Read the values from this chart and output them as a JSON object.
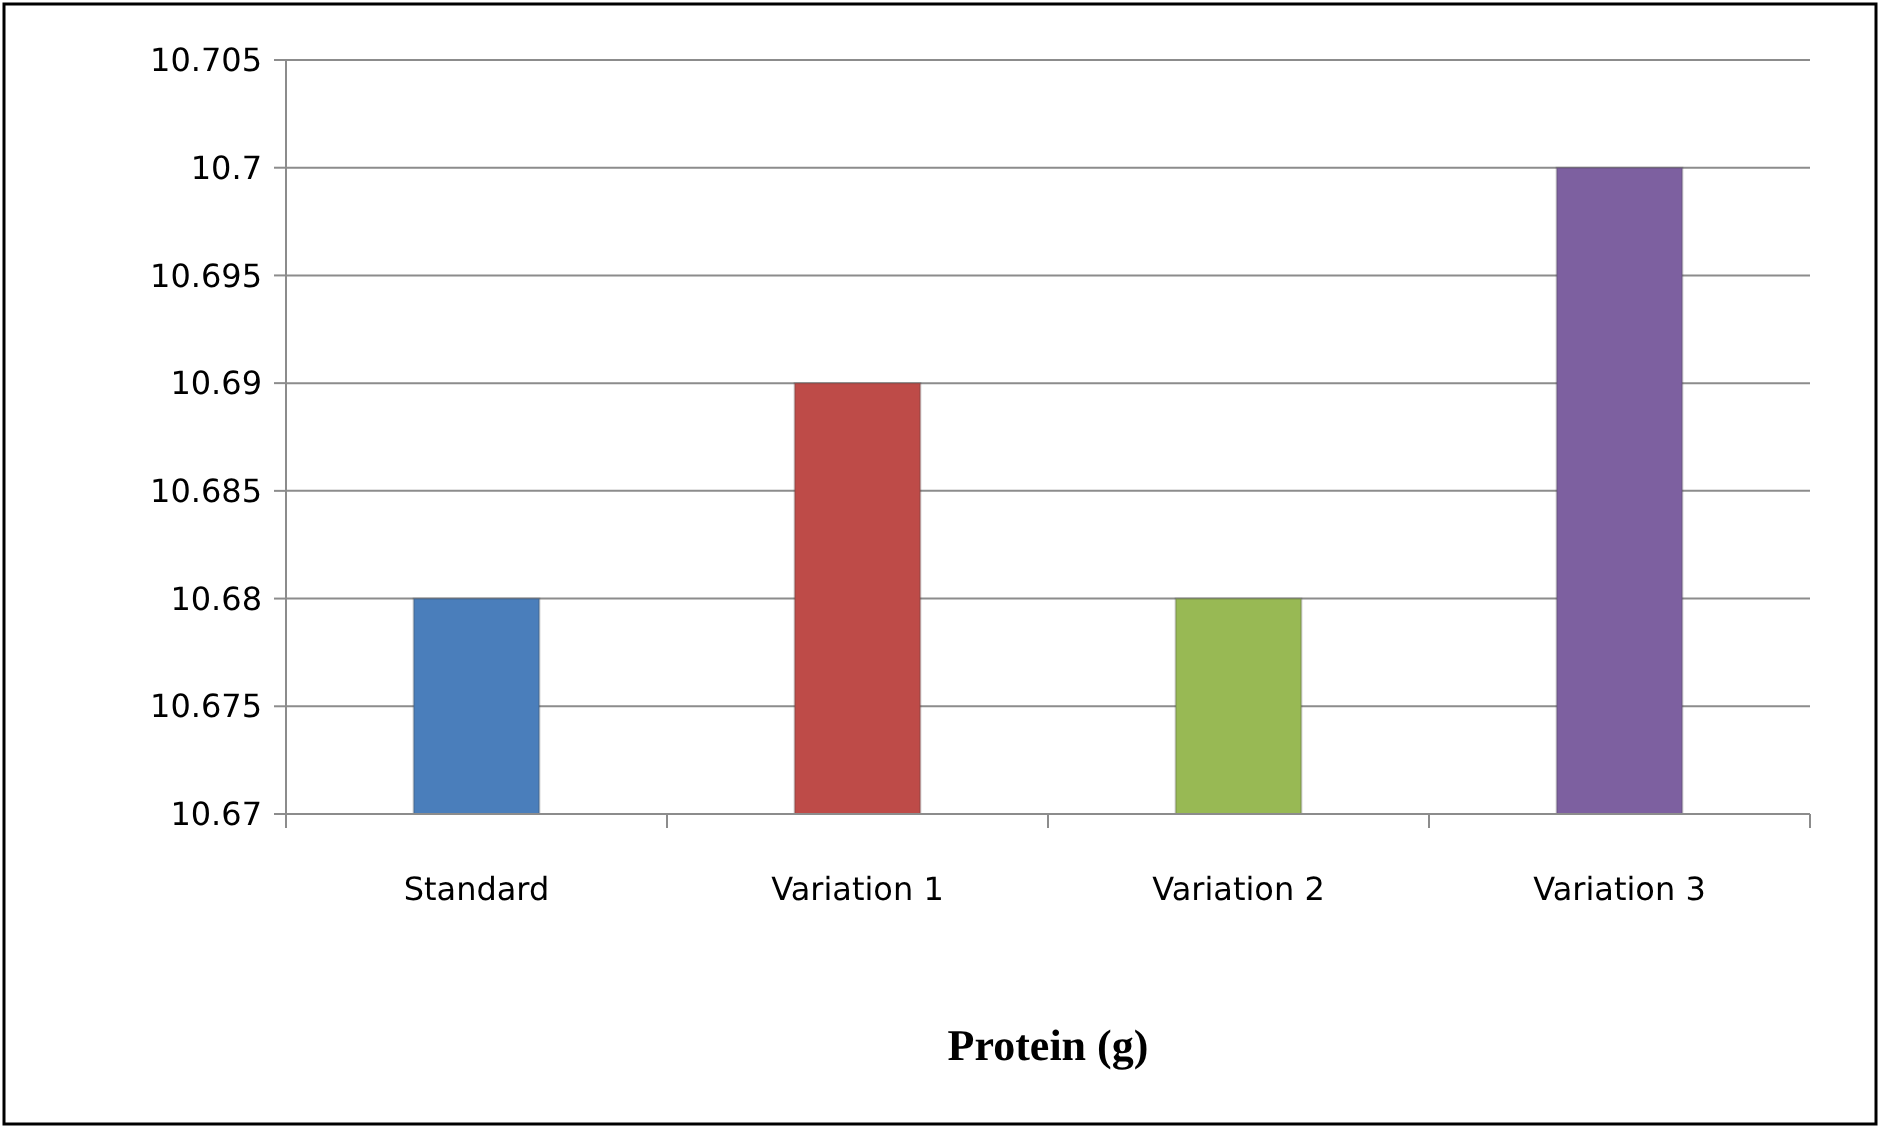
{
  "chart_data": {
    "type": "bar",
    "xlabel": "Protein (g)",
    "categories": [
      "Standard",
      "Variation 1",
      "Variation 2",
      "Variation 3"
    ],
    "values": [
      10.68,
      10.69,
      10.68,
      10.7
    ],
    "colors": [
      "#4a7ebb",
      "#be4b48",
      "#98b954",
      "#7d60a0"
    ],
    "ylim": [
      10.67,
      10.705
    ],
    "yticks": [
      10.67,
      10.675,
      10.68,
      10.685,
      10.69,
      10.695,
      10.7,
      10.705
    ],
    "grid": "y"
  }
}
